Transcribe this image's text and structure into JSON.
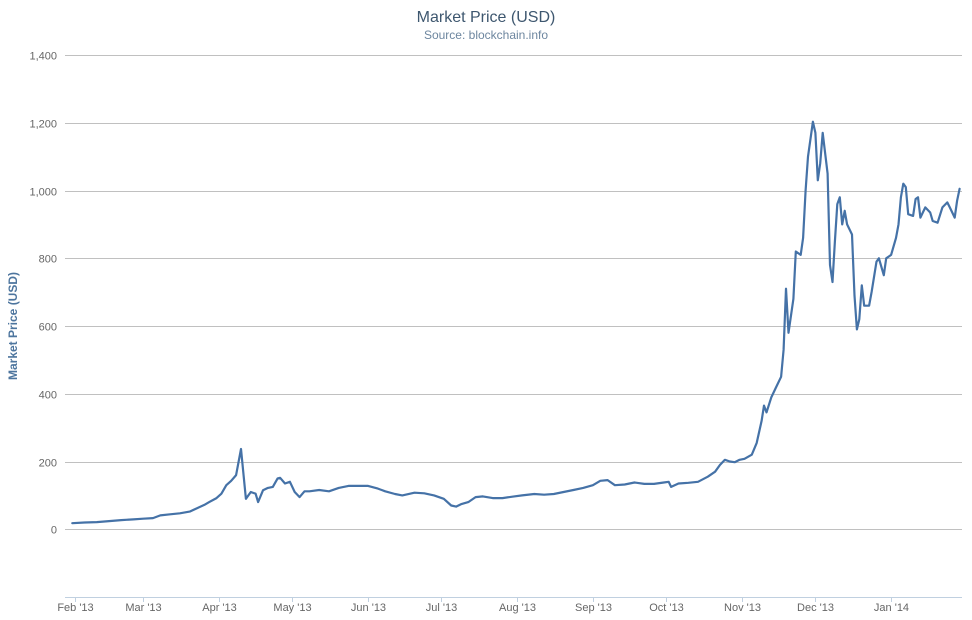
{
  "chart_data": {
    "type": "line",
    "title": "Market Price (USD)",
    "subtitle": "Source: blockchain.info",
    "xlabel": "",
    "ylabel": "Market Price (USD)",
    "xlim": [
      "2013-01-28",
      "2014-01-30"
    ],
    "ylim": [
      -200,
      1400
    ],
    "yticks": [
      {
        "value": 0,
        "label": "0"
      },
      {
        "value": 200,
        "label": "200"
      },
      {
        "value": 400,
        "label": "400"
      },
      {
        "value": 600,
        "label": "600"
      },
      {
        "value": 800,
        "label": "800"
      },
      {
        "value": 1000,
        "label": "1,000"
      },
      {
        "value": 1200,
        "label": "1,200"
      },
      {
        "value": 1400,
        "label": "1,400"
      }
    ],
    "xticks": [
      {
        "date": "2013-02-01",
        "label": "Feb '13"
      },
      {
        "date": "2013-03-01",
        "label": "Mar '13"
      },
      {
        "date": "2013-04-01",
        "label": "Apr '13"
      },
      {
        "date": "2013-05-01",
        "label": "May '13"
      },
      {
        "date": "2013-06-01",
        "label": "Jun '13"
      },
      {
        "date": "2013-07-01",
        "label": "Jul '13"
      },
      {
        "date": "2013-08-01",
        "label": "Aug '13"
      },
      {
        "date": "2013-09-01",
        "label": "Sep '13"
      },
      {
        "date": "2013-10-01",
        "label": "Oct '13"
      },
      {
        "date": "2013-11-01",
        "label": "Nov '13"
      },
      {
        "date": "2013-12-01",
        "label": "Dec '13"
      },
      {
        "date": "2014-01-01",
        "label": "Jan '14"
      }
    ],
    "grid": true,
    "colors": {
      "line": "#4572a7",
      "grid": "#c0c0c0",
      "axis": "#c0d0e0",
      "title": "#3e576f",
      "label": "#666666"
    },
    "series": [
      {
        "name": "",
        "points": [
          [
            "2013-01-31",
            18
          ],
          [
            "2013-02-05",
            20
          ],
          [
            "2013-02-10",
            21
          ],
          [
            "2013-02-15",
            24
          ],
          [
            "2013-02-20",
            27
          ],
          [
            "2013-02-25",
            29
          ],
          [
            "2013-03-01",
            31
          ],
          [
            "2013-03-05",
            33
          ],
          [
            "2013-03-08",
            41
          ],
          [
            "2013-03-12",
            44
          ],
          [
            "2013-03-16",
            47
          ],
          [
            "2013-03-20",
            52
          ],
          [
            "2013-03-23",
            62
          ],
          [
            "2013-03-26",
            72
          ],
          [
            "2013-03-28",
            80
          ],
          [
            "2013-03-31",
            92
          ],
          [
            "2013-04-02",
            105
          ],
          [
            "2013-04-04",
            130
          ],
          [
            "2013-04-06",
            143
          ],
          [
            "2013-04-08",
            160
          ],
          [
            "2013-04-10",
            237
          ],
          [
            "2013-04-12",
            90
          ],
          [
            "2013-04-14",
            110
          ],
          [
            "2013-04-16",
            105
          ],
          [
            "2013-04-17",
            80
          ],
          [
            "2013-04-19",
            115
          ],
          [
            "2013-04-21",
            122
          ],
          [
            "2013-04-23",
            125
          ],
          [
            "2013-04-25",
            150
          ],
          [
            "2013-04-26",
            152
          ],
          [
            "2013-04-28",
            135
          ],
          [
            "2013-04-30",
            140
          ],
          [
            "2013-05-02",
            110
          ],
          [
            "2013-05-04",
            95
          ],
          [
            "2013-05-06",
            112
          ],
          [
            "2013-05-08",
            112
          ],
          [
            "2013-05-12",
            116
          ],
          [
            "2013-05-16",
            112
          ],
          [
            "2013-05-20",
            122
          ],
          [
            "2013-05-24",
            128
          ],
          [
            "2013-05-28",
            128
          ],
          [
            "2013-06-01",
            128
          ],
          [
            "2013-06-05",
            120
          ],
          [
            "2013-06-08",
            112
          ],
          [
            "2013-06-12",
            104
          ],
          [
            "2013-06-15",
            100
          ],
          [
            "2013-06-20",
            108
          ],
          [
            "2013-06-24",
            106
          ],
          [
            "2013-06-28",
            100
          ],
          [
            "2013-07-02",
            90
          ],
          [
            "2013-07-05",
            70
          ],
          [
            "2013-07-07",
            67
          ],
          [
            "2013-07-09",
            74
          ],
          [
            "2013-07-12",
            80
          ],
          [
            "2013-07-15",
            95
          ],
          [
            "2013-07-18",
            97
          ],
          [
            "2013-07-22",
            92
          ],
          [
            "2013-07-26",
            92
          ],
          [
            "2013-07-30",
            96
          ],
          [
            "2013-08-03",
            100
          ],
          [
            "2013-08-08",
            104
          ],
          [
            "2013-08-12",
            102
          ],
          [
            "2013-08-16",
            104
          ],
          [
            "2013-08-20",
            110
          ],
          [
            "2013-08-24",
            116
          ],
          [
            "2013-08-28",
            122
          ],
          [
            "2013-09-01",
            130
          ],
          [
            "2013-09-04",
            143
          ],
          [
            "2013-09-07",
            145
          ],
          [
            "2013-09-10",
            130
          ],
          [
            "2013-09-14",
            132
          ],
          [
            "2013-09-18",
            138
          ],
          [
            "2013-09-22",
            134
          ],
          [
            "2013-09-26",
            134
          ],
          [
            "2013-09-30",
            138
          ],
          [
            "2013-10-02",
            140
          ],
          [
            "2013-10-03",
            125
          ],
          [
            "2013-10-06",
            135
          ],
          [
            "2013-10-10",
            137
          ],
          [
            "2013-10-14",
            140
          ],
          [
            "2013-10-18",
            155
          ],
          [
            "2013-10-21",
            170
          ],
          [
            "2013-10-23",
            190
          ],
          [
            "2013-10-25",
            205
          ],
          [
            "2013-10-27",
            200
          ],
          [
            "2013-10-29",
            198
          ],
          [
            "2013-10-31",
            205
          ],
          [
            "2013-11-02",
            208
          ],
          [
            "2013-11-05",
            220
          ],
          [
            "2013-11-07",
            255
          ],
          [
            "2013-11-09",
            320
          ],
          [
            "2013-11-10",
            365
          ],
          [
            "2013-11-11",
            345
          ],
          [
            "2013-11-13",
            390
          ],
          [
            "2013-11-15",
            420
          ],
          [
            "2013-11-17",
            450
          ],
          [
            "2013-11-18",
            530
          ],
          [
            "2013-11-19",
            710
          ],
          [
            "2013-11-20",
            580
          ],
          [
            "2013-11-22",
            680
          ],
          [
            "2013-11-23",
            820
          ],
          [
            "2013-11-25",
            810
          ],
          [
            "2013-11-26",
            860
          ],
          [
            "2013-11-27",
            1000
          ],
          [
            "2013-11-28",
            1100
          ],
          [
            "2013-11-30",
            1203
          ],
          [
            "2013-12-01",
            1170
          ],
          [
            "2013-12-02",
            1030
          ],
          [
            "2013-12-03",
            1080
          ],
          [
            "2013-12-04",
            1170
          ],
          [
            "2013-12-06",
            1050
          ],
          [
            "2013-12-07",
            780
          ],
          [
            "2013-12-08",
            730
          ],
          [
            "2013-12-09",
            850
          ],
          [
            "2013-12-10",
            960
          ],
          [
            "2013-12-11",
            980
          ],
          [
            "2013-12-12",
            900
          ],
          [
            "2013-12-13",
            940
          ],
          [
            "2013-12-14",
            900
          ],
          [
            "2013-12-16",
            870
          ],
          [
            "2013-12-17",
            690
          ],
          [
            "2013-12-18",
            590
          ],
          [
            "2013-12-19",
            620
          ],
          [
            "2013-12-20",
            720
          ],
          [
            "2013-12-21",
            660
          ],
          [
            "2013-12-23",
            660
          ],
          [
            "2013-12-24",
            700
          ],
          [
            "2013-12-26",
            790
          ],
          [
            "2013-12-27",
            800
          ],
          [
            "2013-12-29",
            750
          ],
          [
            "2013-12-30",
            800
          ],
          [
            "2014-01-01",
            810
          ],
          [
            "2014-01-03",
            860
          ],
          [
            "2014-01-04",
            900
          ],
          [
            "2014-01-05",
            980
          ],
          [
            "2014-01-06",
            1020
          ],
          [
            "2014-01-07",
            1010
          ],
          [
            "2014-01-08",
            930
          ],
          [
            "2014-01-10",
            925
          ],
          [
            "2014-01-11",
            975
          ],
          [
            "2014-01-12",
            980
          ],
          [
            "2014-01-13",
            920
          ],
          [
            "2014-01-15",
            950
          ],
          [
            "2014-01-17",
            935
          ],
          [
            "2014-01-18",
            910
          ],
          [
            "2014-01-20",
            905
          ],
          [
            "2014-01-22",
            950
          ],
          [
            "2014-01-24",
            965
          ],
          [
            "2014-01-25",
            950
          ],
          [
            "2014-01-27",
            920
          ],
          [
            "2014-01-28",
            970
          ],
          [
            "2014-01-29",
            1005
          ]
        ]
      }
    ]
  }
}
